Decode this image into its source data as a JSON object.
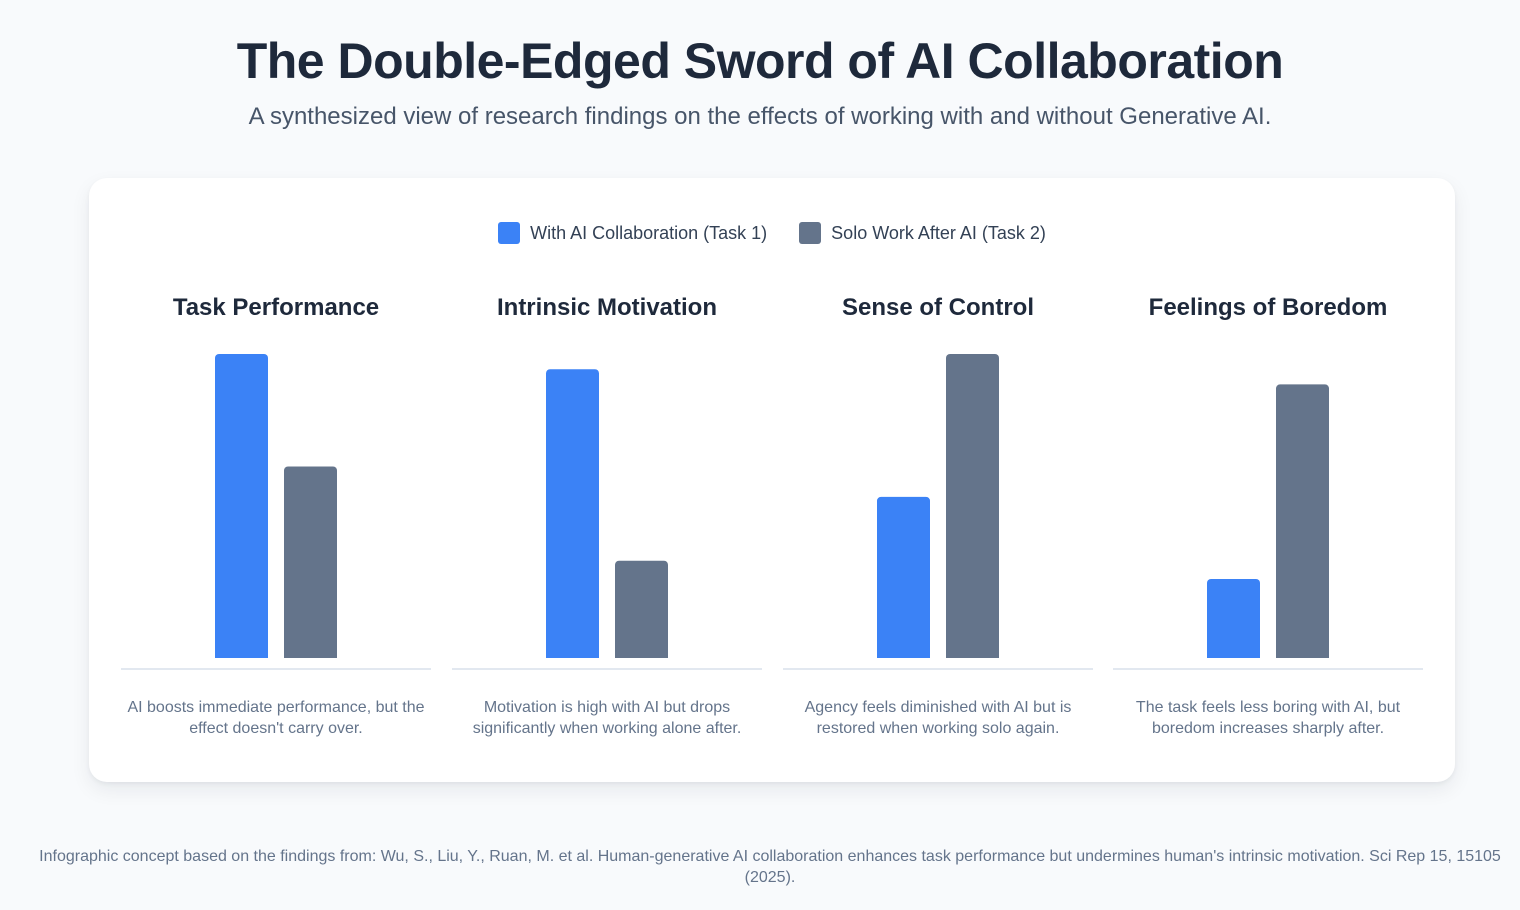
{
  "header": {
    "title": "The Double-Edged Sword of AI Collaboration",
    "subtitle": "A synthesized view of research findings on the effects of working with and without Generative AI."
  },
  "colors": {
    "task1": "#3b82f6",
    "task2": "#64748b",
    "baseline": "#e2e8f0"
  },
  "legend": [
    {
      "label": "With AI Collaboration (Task 1)",
      "color": "#3b82f6"
    },
    {
      "label": "Solo Work After AI (Task 2)",
      "color": "#64748b"
    }
  ],
  "chart_data": [
    {
      "type": "bar",
      "title": "Task Performance",
      "categories": [
        "With AI Collaboration (Task 1)",
        "Solo Work After AI (Task 2)"
      ],
      "values": [
        100,
        63
      ],
      "ylim": [
        0,
        100
      ],
      "caption": "AI boosts immediate performance, but the effect doesn't carry over."
    },
    {
      "type": "bar",
      "title": "Intrinsic Motivation",
      "categories": [
        "With AI Collaboration (Task 1)",
        "Solo Work After AI (Task 2)"
      ],
      "values": [
        95,
        32
      ],
      "ylim": [
        0,
        100
      ],
      "caption": "Motivation is high with AI but drops significantly when working alone after."
    },
    {
      "type": "bar",
      "title": "Sense of Control",
      "categories": [
        "With AI Collaboration (Task 1)",
        "Solo Work After AI (Task 2)"
      ],
      "values": [
        53,
        100
      ],
      "ylim": [
        0,
        100
      ],
      "caption": "Agency feels diminished with AI but is restored when working solo again."
    },
    {
      "type": "bar",
      "title": "Feelings of Boredom",
      "categories": [
        "With AI Collaboration (Task 1)",
        "Solo Work After AI (Task 2)"
      ],
      "values": [
        26,
        90
      ],
      "ylim": [
        0,
        100
      ],
      "caption": "The task feels less boring with AI, but boredom increases sharply after."
    }
  ],
  "footer": {
    "citation": "Infographic concept based on the findings from: Wu, S., Liu, Y., Ruan, M. et al. Human-generative AI collaboration enhances task performance but undermines human's intrinsic motivation. Sci Rep 15, 15105 (2025)."
  }
}
